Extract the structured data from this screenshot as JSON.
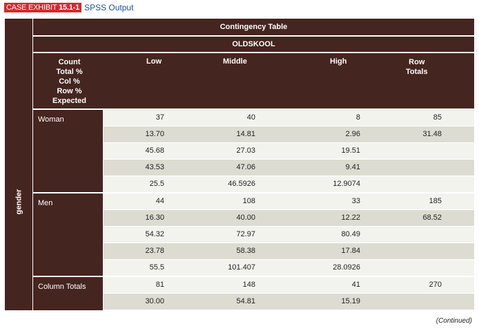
{
  "caption": {
    "exhibit_prefix": "CASE EXHIBIT",
    "exhibit_number": "15.1-1",
    "title": "SPSS Output"
  },
  "table": {
    "title": "Contingency Table",
    "variable": "OLDSKOOL",
    "row_variable": "gender",
    "stat_labels": [
      "Count",
      "Total %",
      "Col %",
      "Row %",
      "Expected"
    ],
    "columns": [
      "Low",
      "Middle",
      "High"
    ],
    "row_totals_label": [
      "Row",
      "Totals"
    ],
    "groups": [
      {
        "label": "Woman",
        "rows": [
          {
            "low": "37",
            "mid": "40",
            "high": "8",
            "total": "85"
          },
          {
            "low": "13.70",
            "mid": "14.81",
            "high": "2.96",
            "total": "31.48"
          },
          {
            "low": "45.68",
            "mid": "27.03",
            "high": "19.51",
            "total": ""
          },
          {
            "low": "43.53",
            "mid": "47.06",
            "high": "9.41",
            "total": ""
          },
          {
            "low": "25.5",
            "mid": "46.5926",
            "high": "12.9074",
            "total": ""
          }
        ]
      },
      {
        "label": "Men",
        "rows": [
          {
            "low": "44",
            "mid": "108",
            "high": "33",
            "total": "185"
          },
          {
            "low": "16.30",
            "mid": "40.00",
            "high": "12.22",
            "total": "68.52"
          },
          {
            "low": "54.32",
            "mid": "72.97",
            "high": "80.49",
            "total": ""
          },
          {
            "low": "23.78",
            "mid": "58.38",
            "high": "17.84",
            "total": ""
          },
          {
            "low": "55.5",
            "mid": "101.407",
            "high": "28.0926",
            "total": ""
          }
        ]
      },
      {
        "label": "Column Totals",
        "rows": [
          {
            "low": "81",
            "mid": "148",
            "high": "41",
            "total": "270"
          },
          {
            "low": "30.00",
            "mid": "54.81",
            "high": "15.19",
            "total": ""
          }
        ]
      }
    ]
  },
  "footer": {
    "continued": "(Continued)"
  },
  "colors": {
    "header_bg": "#45251f",
    "row_light": "#f3f3ee",
    "row_dark": "#dcdcd2",
    "caption_tag": "#d42a2a",
    "caption_title": "#1c4e9e"
  }
}
